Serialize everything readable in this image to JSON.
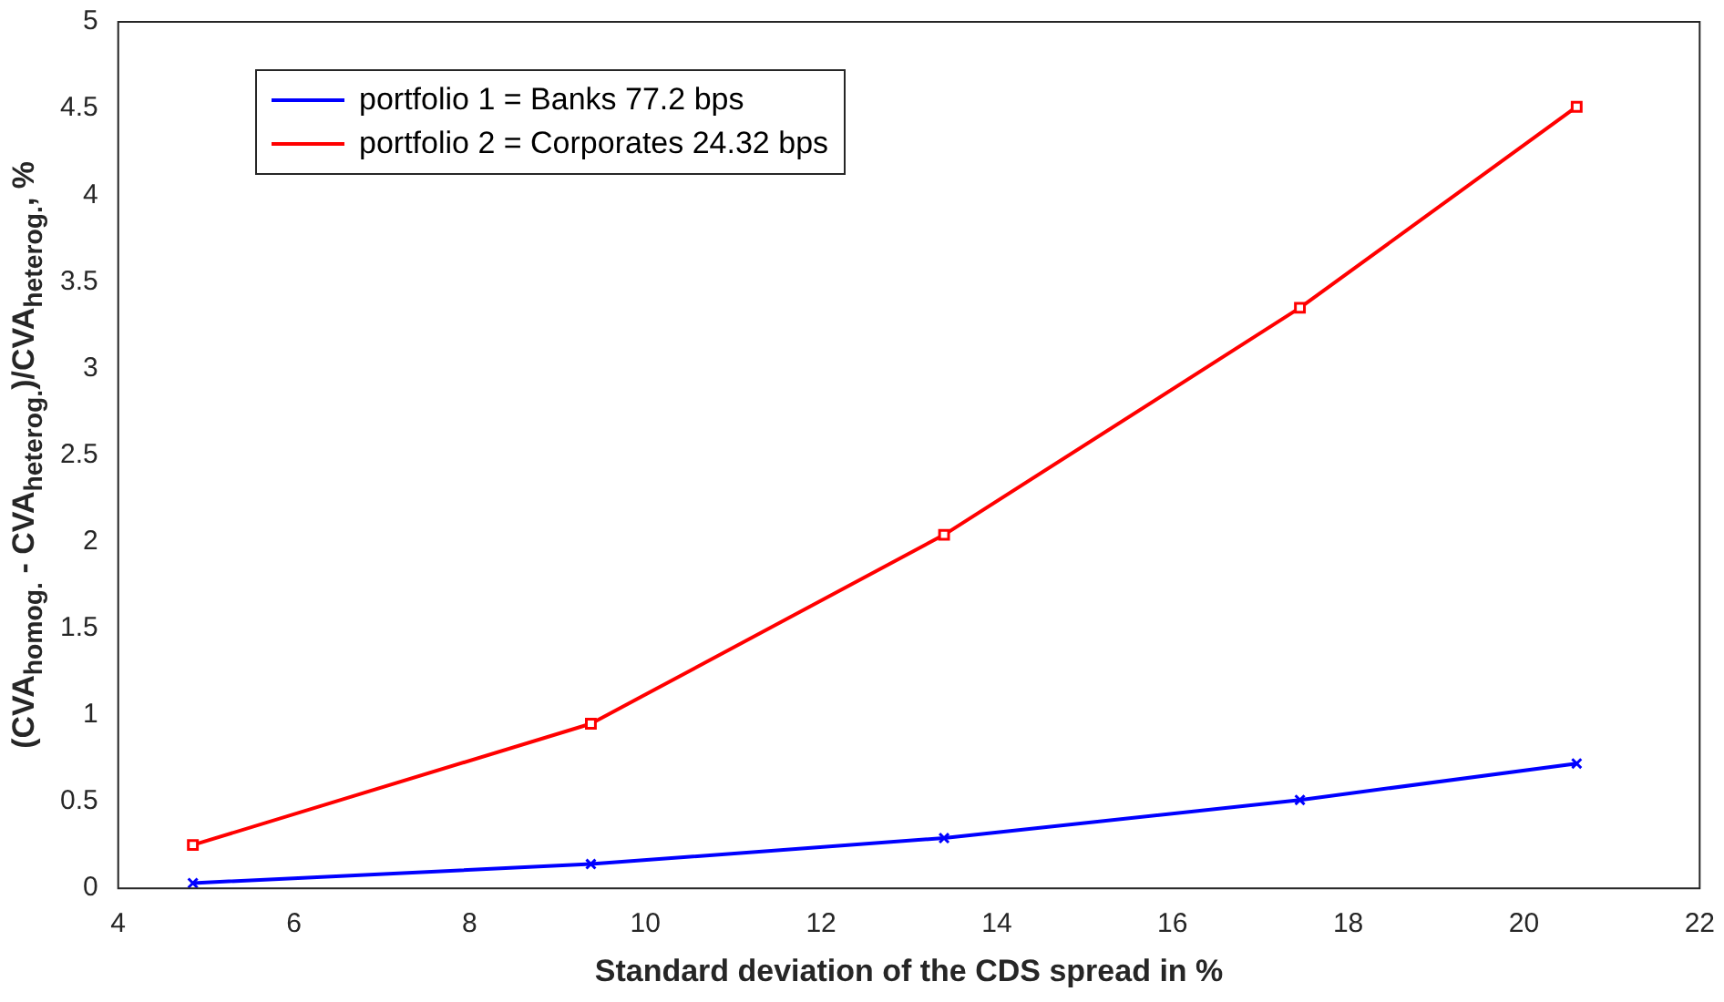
{
  "chart_data": {
    "type": "line",
    "xlabel": "Standard deviation of the CDS spread in %",
    "ylabel": "(CVA$_{homog.}$ - CVA$_{heterog.}$)/CVA$_{heterog.}$, %",
    "xlim": [
      4,
      22
    ],
    "xticks": [
      4,
      6,
      8,
      10,
      12,
      14,
      16,
      18,
      20,
      22
    ],
    "ylim": [
      0,
      5
    ],
    "yticks": [
      0,
      0.5,
      1,
      1.5,
      2,
      2.5,
      3,
      3.5,
      4,
      4.5,
      5
    ],
    "x": [
      4.85,
      9.38,
      13.4,
      17.45,
      20.6
    ],
    "series": [
      {
        "name": "portfolio 1 = Banks 77.2 bps",
        "color": "#0000ff",
        "marker": "cross",
        "values": [
          0.03,
          0.14,
          0.29,
          0.51,
          0.72
        ]
      },
      {
        "name": "portfolio 2 = Corporates 24.32 bps",
        "color": "#ff0000",
        "marker": "square",
        "values": [
          0.25,
          0.95,
          2.04,
          3.35,
          4.51
        ]
      }
    ],
    "grid": false,
    "legend": "top left",
    "line_style": "solid"
  }
}
